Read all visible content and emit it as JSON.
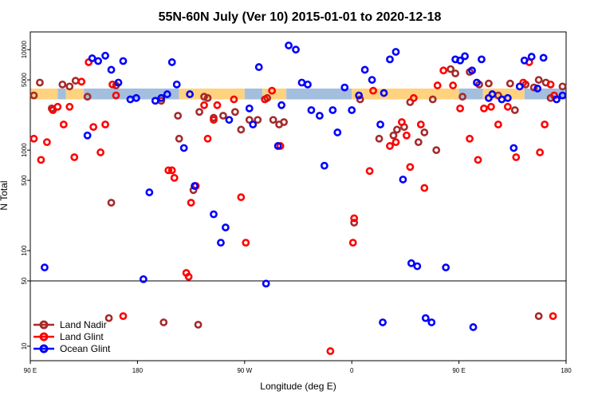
{
  "chart_data": {
    "type": "scatter",
    "title": "55N-60N July (Ver 10)   2015-01-01 to 2020-12-18",
    "xlabel": "Longitude (deg E)",
    "ylabel": "N Total",
    "x_ticks": [
      {
        "value": 0,
        "label": "90 E"
      },
      {
        "value": 90,
        "label": "180"
      },
      {
        "value": 180,
        "label": "90 W"
      },
      {
        "value": 270,
        "label": "0"
      },
      {
        "value": 360,
        "label": "90 E"
      },
      {
        "value": 450,
        "label": "180"
      }
    ],
    "xlim": [
      0,
      450
    ],
    "y_ticks_upper": [
      {
        "value": 100,
        "label": "100"
      },
      {
        "value": 500,
        "label": "500"
      },
      {
        "value": 1000,
        "label": "1000"
      },
      {
        "value": 5000,
        "label": "5000"
      },
      {
        "value": 10000,
        "label": "10000"
      }
    ],
    "y_ticks_lower": [
      {
        "value": 10,
        "label": "10"
      },
      {
        "value": 50,
        "label": "50"
      }
    ],
    "ylim_upper": [
      50,
      15000
    ],
    "ylim_lower": [
      7,
      50
    ],
    "y_scale": "log",
    "grid": false,
    "legend_position": "bottom-left",
    "colors": {
      "land_nadir": "#a52a2a",
      "land_glint": "#ff0000",
      "ocean_glint": "#0000ff",
      "band_land": "#ffd27f",
      "band_ocean": "#a4bede"
    },
    "band": {
      "y_low": 3200,
      "y_high": 4100
    },
    "series": [
      {
        "name": "Land Nadir",
        "color": "#a52a2a",
        "points": [
          [
            3,
            3500
          ],
          [
            8,
            4700
          ],
          [
            18,
            2600
          ],
          [
            27,
            4500
          ],
          [
            33,
            4300
          ],
          [
            38,
            4900
          ],
          [
            48,
            3400
          ],
          [
            68,
            300
          ],
          [
            72,
            4400
          ],
          [
            110,
            3100
          ],
          [
            124,
            2200
          ],
          [
            125,
            1300
          ],
          [
            137,
            400
          ],
          [
            142,
            2400
          ],
          [
            146,
            3400
          ],
          [
            149,
            3300
          ],
          [
            154,
            2100
          ],
          [
            162,
            2200
          ],
          [
            172,
            2400
          ],
          [
            177,
            1600
          ],
          [
            184,
            2000
          ],
          [
            191,
            2000
          ],
          [
            199,
            3300
          ],
          [
            204,
            2000
          ],
          [
            209,
            1800
          ],
          [
            213,
            1900
          ],
          [
            272,
            190
          ],
          [
            277,
            3200
          ],
          [
            293,
            1300
          ],
          [
            305,
            1400
          ],
          [
            308,
            1600
          ],
          [
            314,
            1700
          ],
          [
            319,
            3000
          ],
          [
            326,
            1200
          ],
          [
            331,
            1500
          ],
          [
            338,
            3200
          ],
          [
            341,
            1000
          ],
          [
            353,
            6400
          ],
          [
            357,
            5800
          ],
          [
            363,
            3400
          ],
          [
            369,
            6000
          ],
          [
            377,
            4500
          ],
          [
            385,
            4600
          ],
          [
            393,
            3500
          ],
          [
            403,
            4600
          ],
          [
            407,
            2500
          ],
          [
            416,
            4500
          ],
          [
            423,
            4200
          ],
          [
            427,
            5000
          ],
          [
            433,
            4700
          ],
          [
            437,
            3300
          ],
          [
            447,
            4300
          ]
        ],
        "points_lower": [
          [
            66,
            20
          ],
          [
            112,
            18
          ],
          [
            141,
            17
          ],
          [
            427,
            21
          ]
        ]
      },
      {
        "name": "Land Glint",
        "color": "#ff0000",
        "points": [
          [
            3,
            1300
          ],
          [
            9,
            800
          ],
          [
            14,
            1200
          ],
          [
            19,
            2500
          ],
          [
            23,
            2700
          ],
          [
            28,
            1800
          ],
          [
            33,
            2700
          ],
          [
            37,
            850
          ],
          [
            43,
            4800
          ],
          [
            49,
            7500
          ],
          [
            53,
            1700
          ],
          [
            59,
            950
          ],
          [
            63,
            1800
          ],
          [
            69,
            4500
          ],
          [
            72,
            3500
          ],
          [
            116,
            630
          ],
          [
            119,
            630
          ],
          [
            121,
            530
          ],
          [
            131,
            60
          ],
          [
            133,
            55
          ],
          [
            135,
            300
          ],
          [
            139,
            440
          ],
          [
            146,
            2800
          ],
          [
            149,
            1300
          ],
          [
            154,
            2000
          ],
          [
            157,
            2800
          ],
          [
            171,
            3200
          ],
          [
            177,
            340
          ],
          [
            181,
            120
          ],
          [
            197,
            3200
          ],
          [
            203,
            3900
          ],
          [
            210,
            1100
          ],
          [
            252,
            10
          ],
          [
            271,
            120
          ],
          [
            272,
            210
          ],
          [
            285,
            620
          ],
          [
            288,
            3900
          ],
          [
            302,
            1100
          ],
          [
            307,
            1200
          ],
          [
            312,
            1900
          ],
          [
            316,
            1400
          ],
          [
            319,
            680
          ],
          [
            322,
            3300
          ],
          [
            328,
            1800
          ],
          [
            331,
            420
          ],
          [
            342,
            4400
          ],
          [
            347,
            6200
          ],
          [
            355,
            4400
          ],
          [
            361,
            2600
          ],
          [
            369,
            1300
          ],
          [
            376,
            800
          ],
          [
            381,
            2600
          ],
          [
            387,
            2700
          ],
          [
            393,
            1800
          ],
          [
            401,
            2700
          ],
          [
            408,
            850
          ],
          [
            414,
            4700
          ],
          [
            419,
            7500
          ],
          [
            428,
            950
          ],
          [
            432,
            1800
          ],
          [
            437,
            4500
          ],
          [
            440,
            3500
          ]
        ],
        "points_lower": [
          [
            78,
            21
          ],
          [
            439,
            21
          ]
        ]
      },
      {
        "name": "Ocean Glint",
        "color": "#0000ff",
        "points": [
          [
            12,
            68
          ],
          [
            48,
            1400
          ],
          [
            52,
            8200
          ],
          [
            57,
            7700
          ],
          [
            63,
            8700
          ],
          [
            68,
            6300
          ],
          [
            74,
            4700
          ],
          [
            78,
            7700
          ],
          [
            84,
            3200
          ],
          [
            89,
            3300
          ],
          [
            95,
            52
          ],
          [
            100,
            380
          ],
          [
            105,
            3100
          ],
          [
            110,
            3300
          ],
          [
            115,
            3600
          ],
          [
            119,
            7500
          ],
          [
            123,
            4500
          ],
          [
            129,
            1050
          ],
          [
            134,
            3600
          ],
          [
            138,
            440
          ],
          [
            154,
            230
          ],
          [
            160,
            120
          ],
          [
            164,
            170
          ],
          [
            167,
            2000
          ],
          [
            184,
            2600
          ],
          [
            187,
            1800
          ],
          [
            192,
            6700
          ],
          [
            198,
            47
          ],
          [
            208,
            1100
          ],
          [
            211,
            2800
          ],
          [
            217,
            11000
          ],
          [
            223,
            10000
          ],
          [
            228,
            4700
          ],
          [
            233,
            4500
          ],
          [
            236,
            2500
          ],
          [
            243,
            2200
          ],
          [
            247,
            700
          ],
          [
            254,
            2500
          ],
          [
            258,
            1500
          ],
          [
            264,
            4200
          ],
          [
            270,
            2500
          ],
          [
            276,
            3500
          ],
          [
            281,
            6300
          ],
          [
            287,
            5000
          ],
          [
            294,
            1800
          ],
          [
            297,
            3700
          ],
          [
            302,
            8000
          ],
          [
            307,
            9500
          ],
          [
            313,
            510
          ],
          [
            320,
            75
          ],
          [
            325,
            70
          ],
          [
            349,
            68
          ],
          [
            357,
            8000
          ],
          [
            361,
            7800
          ],
          [
            365,
            8600
          ],
          [
            371,
            6200
          ],
          [
            375,
            4700
          ],
          [
            379,
            8000
          ],
          [
            385,
            3300
          ],
          [
            388,
            3600
          ],
          [
            396,
            3200
          ],
          [
            401,
            3300
          ],
          [
            406,
            1050
          ],
          [
            411,
            4300
          ],
          [
            415,
            7800
          ],
          [
            421,
            8500
          ],
          [
            426,
            4100
          ],
          [
            431,
            8300
          ],
          [
            442,
            3200
          ],
          [
            447,
            3500
          ]
        ],
        "points_lower": [
          [
            296,
            18
          ],
          [
            332,
            20
          ],
          [
            337,
            18
          ],
          [
            372,
            16
          ]
        ]
      }
    ]
  }
}
